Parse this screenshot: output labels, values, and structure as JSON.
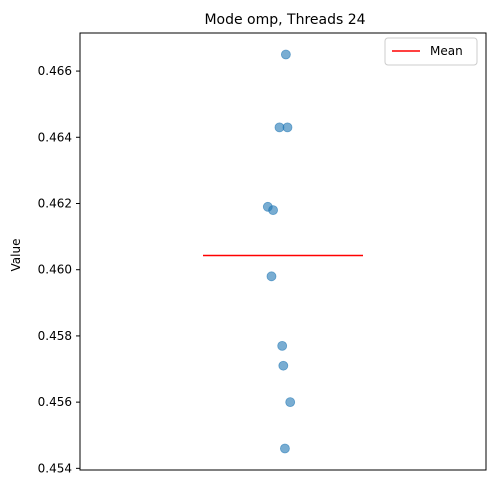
{
  "chart_data": {
    "type": "scatter",
    "title": "Mode omp, Threads 24",
    "xlabel": "",
    "ylabel": "Value",
    "ylim": [
      0.45395,
      0.46715
    ],
    "yticks": [
      0.454,
      0.456,
      0.458,
      0.46,
      0.462,
      0.464,
      0.466
    ],
    "ytick_labels": [
      "0.454",
      "0.456",
      "0.458",
      "0.460",
      "0.462",
      "0.464",
      "0.466"
    ],
    "x_ticks_visible": false,
    "grid": false,
    "legend": {
      "position": "top-right",
      "entries": [
        "Mean"
      ]
    },
    "colors": {
      "points": "#1f77b4",
      "mean": "#ff0000"
    },
    "series": [
      {
        "values": [
          0.4665,
          0.4643,
          0.4643,
          0.4619,
          0.4618,
          0.4598,
          0.4577,
          0.4571,
          0.456,
          0.4546
        ],
        "x_jitter": [
          0.018,
          -0.022,
          0.028,
          -0.095,
          -0.062,
          -0.072,
          -0.005,
          0.002,
          0.045,
          0.012
        ]
      }
    ],
    "mean": {
      "name": "Mean",
      "value": 0.46043
    }
  }
}
